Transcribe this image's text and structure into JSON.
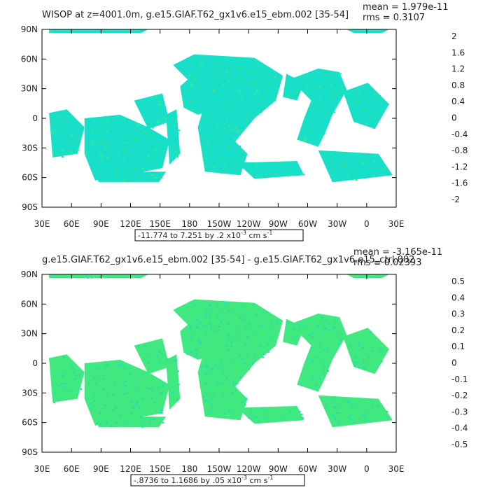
{
  "chart_data": [
    {
      "type": "heatmap",
      "title": "WISOP at z=4001.0m, g.e15.GIAF.T62_gx1v6.e15_ebm.002 [35-54]",
      "stats": {
        "mean": "mean = 1.979e-11",
        "rms": "rms = 0.3107"
      },
      "x_ticks": [
        "30E",
        "60E",
        "90E",
        "120E",
        "150E",
        "180",
        "150W",
        "120W",
        "90W",
        "60W",
        "30W",
        "0",
        "30E"
      ],
      "y_ticks": [
        "90N",
        "60N",
        "30N",
        "0",
        "30S",
        "60S",
        "90S"
      ],
      "colorbar_labels": [
        "2",
        "1.6",
        "1.2",
        "0.8",
        "0.4",
        "0",
        "-0.4",
        "-0.8",
        "-1.2",
        "-1.6",
        "-2"
      ],
      "colorbar_colors": [
        "#b00000",
        "#ee0000",
        "#ff6a00",
        "#ff9a20",
        "#ffb030",
        "#ffe000",
        "#80e030",
        "#10c850",
        "#00e0d0",
        "#00f0f0",
        "#00c8f0",
        "#0090f0",
        "#0050f0",
        "#0000d0",
        "#7020c0",
        "#e020e0",
        "#c0c0c0",
        "#707070"
      ],
      "footer": {
        "range_text": "-11.774 to 7.251 by .2 x10",
        "exp": "-3",
        "units_text": " cm s",
        "units_exp": "-1"
      }
    },
    {
      "type": "heatmap",
      "title": "g.e15.GIAF.T62_gx1v6.e15_ebm.002 [35-54] - g.e15.GIAF.T62_gx1v6.e15_ctrl.002",
      "stats": {
        "mean": "mean = -3.165e-11",
        "rms": "rms = 0.02393"
      },
      "x_ticks": [
        "30E",
        "60E",
        "90E",
        "120E",
        "150E",
        "180",
        "150W",
        "120W",
        "90W",
        "60W",
        "30W",
        "0",
        "30E"
      ],
      "y_ticks": [
        "90N",
        "60N",
        "30N",
        "0",
        "30S",
        "60S",
        "90S"
      ],
      "colorbar_labels": [
        "0.5",
        "0.4",
        "0.3",
        "0.2",
        "0.1",
        "0",
        "-0.1",
        "-0.2",
        "-0.3",
        "-0.4",
        "-0.5"
      ],
      "colorbar_colors": [
        "#b00000",
        "#ee0000",
        "#ff6a00",
        "#ff9a20",
        "#ffb030",
        "#ffe000",
        "#80e030",
        "#10c850",
        "#00e0d0",
        "#00f0f0",
        "#00c8f0",
        "#0090f0",
        "#0050f0",
        "#0000d0",
        "#7020c0",
        "#e020e0",
        "#c0c0c0",
        "#707070",
        "#606060",
        "#505050"
      ],
      "footer": {
        "range_text": "-.8736 to 1.1686 by .05 x10",
        "exp": "-3",
        "units_text": " cm s",
        "units_exp": "-1"
      }
    }
  ],
  "colors": {
    "ocean_main": "#18e0c8",
    "ocean_alt": "#40e880",
    "land": "#ffffff",
    "frame": "#000000"
  }
}
